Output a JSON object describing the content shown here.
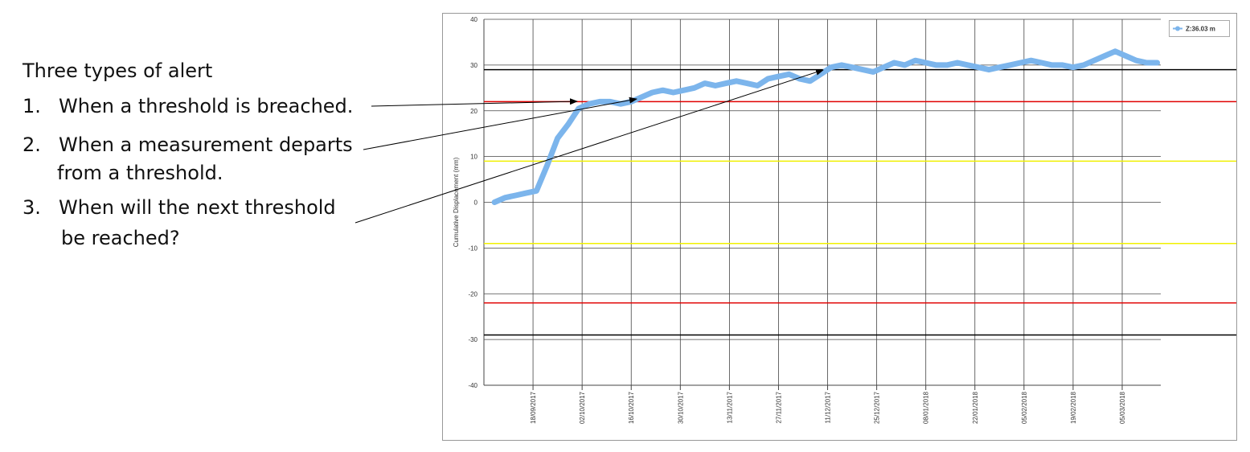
{
  "slide": {
    "heading": "Three types of alert",
    "items": [
      {
        "number": "1.",
        "lines": [
          "When a threshold is breached."
        ]
      },
      {
        "number": "2.",
        "lines": [
          "When a measurement departs",
          "from a threshold."
        ]
      },
      {
        "number": "3.",
        "lines": [
          "When will the next threshold",
          "be reached?"
        ]
      }
    ]
  },
  "chart_data": {
    "type": "line",
    "y_label": "Cumulative Displacement (mm)",
    "ylim": [
      -40,
      40
    ],
    "yticks": [
      -40,
      -30,
      -20,
      -10,
      0,
      10,
      20,
      30,
      40
    ],
    "xlim": [
      "2017-09-04",
      "2018-03-16"
    ],
    "xticks": [
      {
        "value": "2017-09-18",
        "label": "18/09/2017"
      },
      {
        "value": "2017-10-02",
        "label": "02/10/2017"
      },
      {
        "value": "2017-10-16",
        "label": "16/10/2017"
      },
      {
        "value": "2017-10-30",
        "label": "30/10/2017"
      },
      {
        "value": "2017-11-13",
        "label": "13/11/2017"
      },
      {
        "value": "2017-11-27",
        "label": "27/11/2017"
      },
      {
        "value": "2017-12-11",
        "label": "11/12/2017"
      },
      {
        "value": "2017-12-25",
        "label": "25/12/2017"
      },
      {
        "value": "2018-01-08",
        "label": "08/01/2018"
      },
      {
        "value": "2018-01-22",
        "label": "22/01/2018"
      },
      {
        "value": "2018-02-05",
        "label": "05/02/2018"
      },
      {
        "value": "2018-02-19",
        "label": "19/02/2018"
      },
      {
        "value": "2018-03-05",
        "label": "05/03/2018"
      }
    ],
    "grid": true,
    "legend_position": "upper right",
    "thresholds": [
      {
        "value": 29,
        "color": "#000000"
      },
      {
        "value": 22,
        "color": "#e00000"
      },
      {
        "value": 9,
        "color": "#f0f000"
      },
      {
        "value": -9,
        "color": "#f0f000"
      },
      {
        "value": -22,
        "color": "#e00000"
      },
      {
        "value": -29,
        "color": "#000000"
      }
    ],
    "x": [
      "2017-09-07",
      "2017-09-10",
      "2017-09-13",
      "2017-09-16",
      "2017-09-19",
      "2017-09-22",
      "2017-09-25",
      "2017-09-28",
      "2017-10-01",
      "2017-10-04",
      "2017-10-07",
      "2017-10-10",
      "2017-10-13",
      "2017-10-16",
      "2017-10-19",
      "2017-10-22",
      "2017-10-25",
      "2017-10-28",
      "2017-10-31",
      "2017-11-03",
      "2017-11-06",
      "2017-11-09",
      "2017-11-12",
      "2017-11-15",
      "2017-11-18",
      "2017-11-21",
      "2017-11-24",
      "2017-11-27",
      "2017-11-30",
      "2017-12-03",
      "2017-12-06",
      "2017-12-09",
      "2017-12-12",
      "2017-12-15",
      "2017-12-18",
      "2017-12-21",
      "2017-12-24",
      "2017-12-27",
      "2017-12-30",
      "2018-01-02",
      "2018-01-05",
      "2018-01-08",
      "2018-01-11",
      "2018-01-14",
      "2018-01-17",
      "2018-01-20",
      "2018-01-23",
      "2018-01-26",
      "2018-01-29",
      "2018-02-01",
      "2018-02-04",
      "2018-02-07",
      "2018-02-10",
      "2018-02-13",
      "2018-02-16",
      "2018-02-19",
      "2018-02-22",
      "2018-02-25",
      "2018-02-28",
      "2018-03-03",
      "2018-03-06",
      "2018-03-09",
      "2018-03-12",
      "2018-03-15"
    ],
    "series": [
      {
        "name": "Z:36.03 m",
        "color": "#7cb5ec",
        "values": [
          0,
          1,
          1.5,
          2,
          2.5,
          8,
          14,
          17,
          20.5,
          21.5,
          22,
          22,
          21.5,
          22,
          23,
          24,
          24.5,
          24,
          24.5,
          25,
          26,
          25.5,
          26,
          26.5,
          26,
          25.5,
          27,
          27.5,
          28,
          27,
          26.5,
          28,
          29.5,
          30,
          29.5,
          29,
          28.5,
          29.5,
          30.5,
          30,
          31,
          30.5,
          30,
          30,
          30.5,
          30,
          29.5,
          29,
          29.5,
          30,
          30.5,
          31,
          30.5,
          30,
          30,
          29.5,
          30,
          31,
          32,
          33,
          32,
          31,
          30.5,
          30.5
        ]
      }
    ]
  }
}
